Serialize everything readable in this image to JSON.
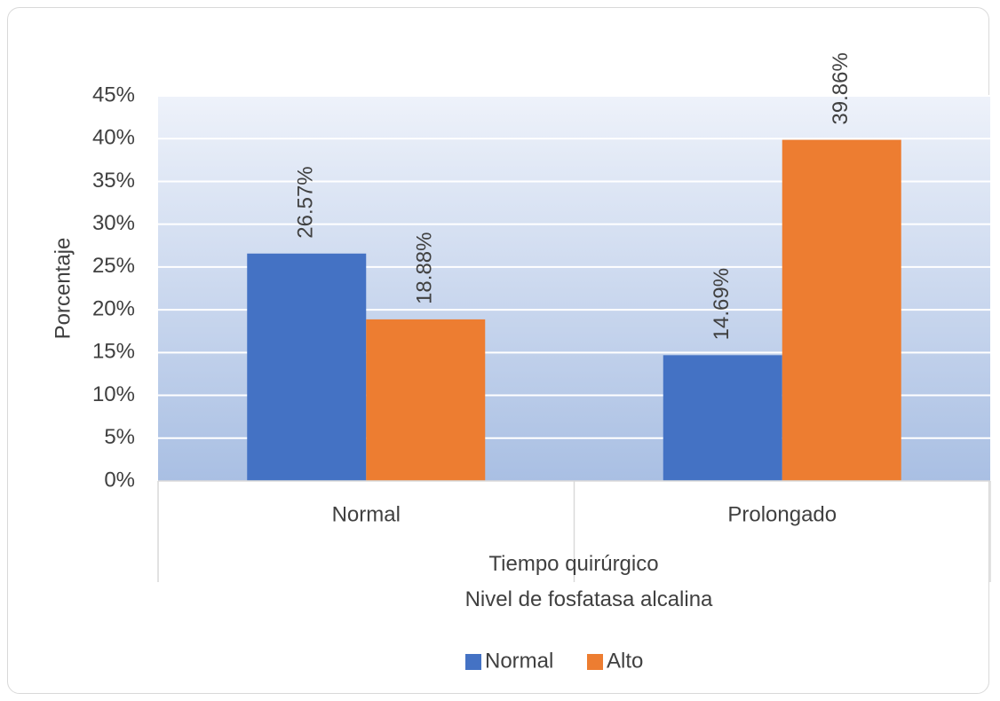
{
  "chart_data": {
    "type": "bar",
    "categories": [
      "Normal",
      "Prolongado"
    ],
    "series": [
      {
        "name": "Normal",
        "values": [
          26.57,
          14.69
        ],
        "color": "#4472C4"
      },
      {
        "name": "Alto",
        "values": [
          18.88,
          39.86
        ],
        "color": "#ED7D31"
      }
    ],
    "data_labels": [
      [
        "26.57%",
        "14.69%"
      ],
      [
        "18.88%",
        "39.86%"
      ]
    ],
    "ylabel": "Porcentaje",
    "xlabel_lines": [
      "Tiempo quirúrgico",
      "Nivel de fosfatasa alcalina"
    ],
    "ylim": [
      0,
      45
    ],
    "yticks": [
      "0%",
      "5%",
      "10%",
      "15%",
      "20%",
      "25%",
      "30%",
      "35%",
      "40%",
      "45%"
    ],
    "grid": true,
    "legend_position": "bottom",
    "plot_background": "gradient light blue"
  }
}
